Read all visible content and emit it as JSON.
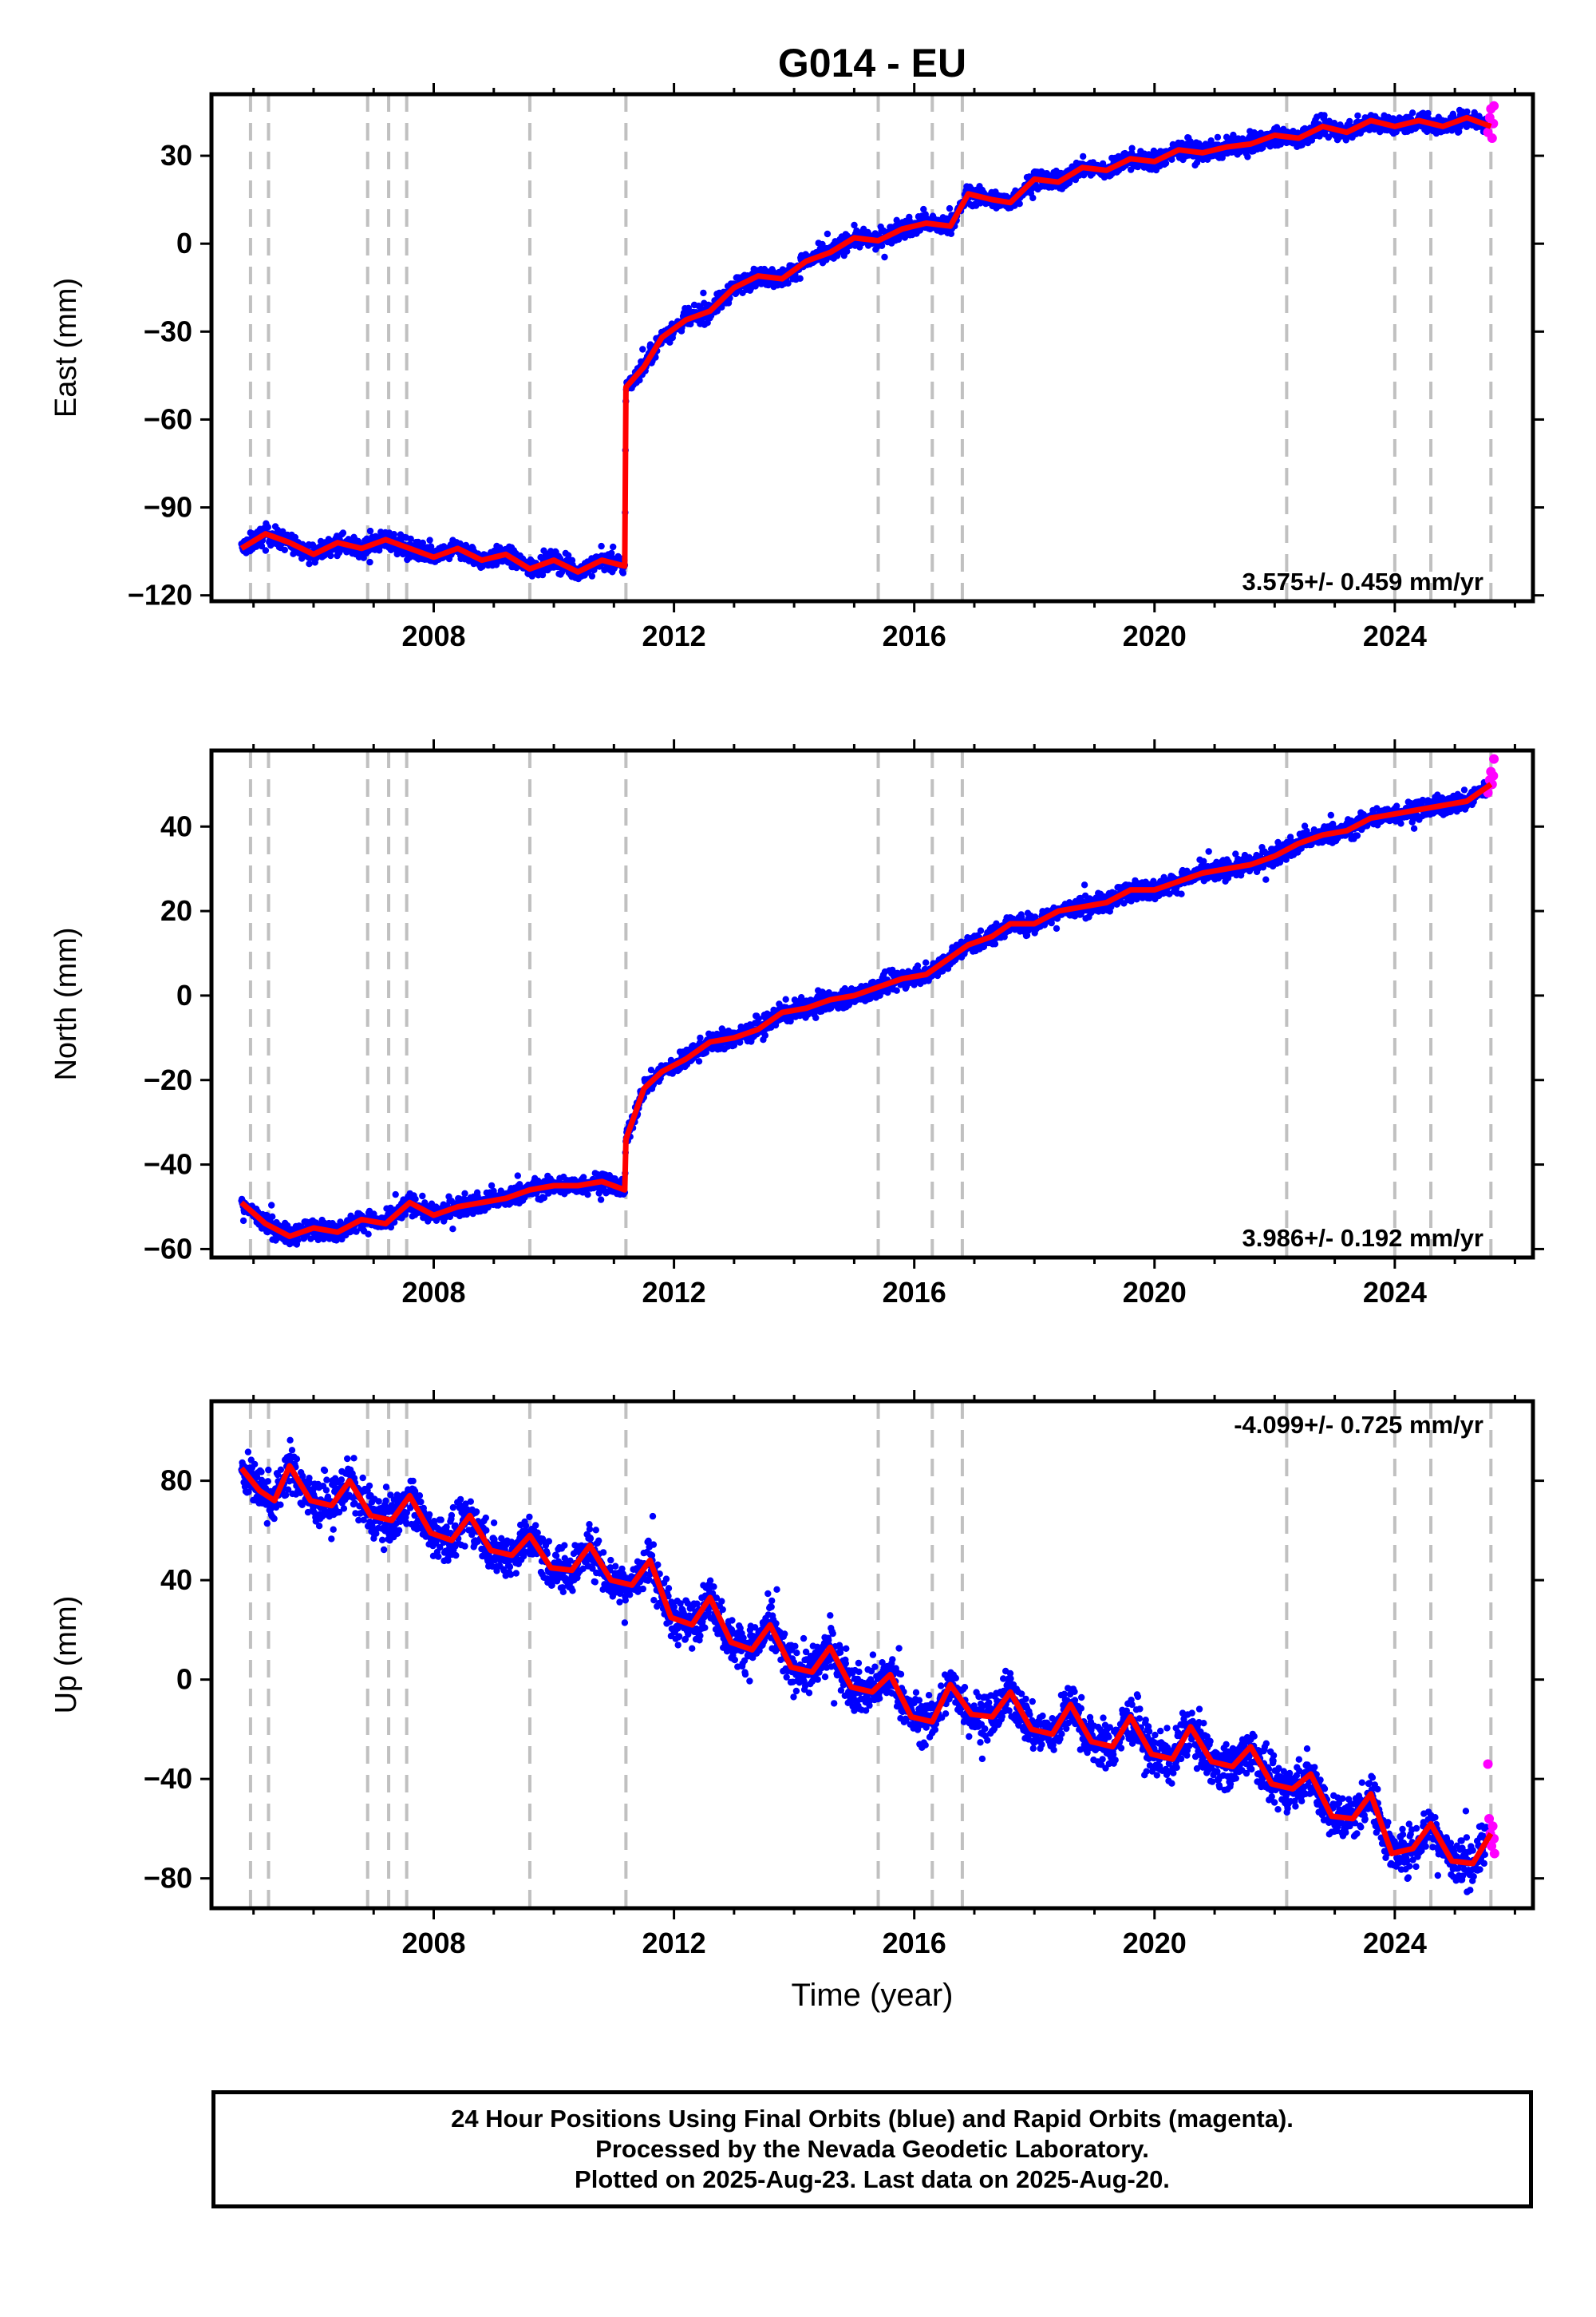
{
  "title": "G014 - EU",
  "xlabel": "Time (year)",
  "colors": {
    "final": "#0000ff",
    "rapid": "#ff00ff",
    "model": "#ff0000",
    "steps": "#c0c0c0"
  },
  "footer": {
    "line1": "24 Hour Positions Using Final Orbits (blue) and Rapid Orbits (magenta).",
    "line2": "Processed by the Nevada Geodetic Laboratory.",
    "line3": "Plotted on 2025-Aug-23. Last data on 2025-Aug-20."
  },
  "chart_data": [
    {
      "type": "scatter",
      "name": "east",
      "title": "G014 - EU",
      "ylabel": "East (mm)",
      "xlim": [
        2004.3,
        2026.3
      ],
      "ylim": [
        -122,
        51
      ],
      "xticks": [
        2008,
        2012,
        2016,
        2020,
        2024
      ],
      "yticks": [
        -120,
        -90,
        -60,
        -30,
        0,
        30
      ],
      "rate_label": "3.575+/- 0.459 mm/yr",
      "rate_position": "bottom-right",
      "step_lines": [
        2004.95,
        2005.25,
        2006.9,
        2007.25,
        2007.55,
        2009.6,
        2011.2,
        2015.4,
        2016.3,
        2016.8,
        2022.2,
        2024.0,
        2024.6,
        2025.6
      ],
      "model_curve": [
        [
          2004.8,
          -104
        ],
        [
          2005.2,
          -99
        ],
        [
          2005.6,
          -102
        ],
        [
          2006.0,
          -106
        ],
        [
          2006.4,
          -102
        ],
        [
          2006.8,
          -104
        ],
        [
          2007.2,
          -101
        ],
        [
          2007.6,
          -104
        ],
        [
          2008.0,
          -107
        ],
        [
          2008.4,
          -104
        ],
        [
          2008.8,
          -108
        ],
        [
          2009.2,
          -106
        ],
        [
          2009.6,
          -111
        ],
        [
          2010.0,
          -108
        ],
        [
          2010.4,
          -112
        ],
        [
          2010.8,
          -108
        ],
        [
          2011.18,
          -110
        ],
        [
          2011.2,
          -49
        ],
        [
          2011.5,
          -42
        ],
        [
          2011.8,
          -32
        ],
        [
          2012.2,
          -26
        ],
        [
          2012.6,
          -23
        ],
        [
          2013.0,
          -15
        ],
        [
          2013.4,
          -11
        ],
        [
          2013.8,
          -12
        ],
        [
          2014.2,
          -6
        ],
        [
          2014.6,
          -3
        ],
        [
          2015.0,
          2
        ],
        [
          2015.4,
          1
        ],
        [
          2015.8,
          5
        ],
        [
          2016.2,
          7
        ],
        [
          2016.6,
          6
        ],
        [
          2016.9,
          17
        ],
        [
          2017.3,
          15
        ],
        [
          2017.6,
          14
        ],
        [
          2018.0,
          22
        ],
        [
          2018.4,
          21
        ],
        [
          2018.8,
          26
        ],
        [
          2019.2,
          25
        ],
        [
          2019.6,
          29
        ],
        [
          2020.0,
          28
        ],
        [
          2020.4,
          32
        ],
        [
          2020.8,
          31
        ],
        [
          2021.2,
          33
        ],
        [
          2021.6,
          34
        ],
        [
          2022.0,
          37
        ],
        [
          2022.4,
          36
        ],
        [
          2022.8,
          40
        ],
        [
          2023.2,
          38
        ],
        [
          2023.6,
          42
        ],
        [
          2024.0,
          40
        ],
        [
          2024.4,
          42
        ],
        [
          2024.8,
          40
        ],
        [
          2025.2,
          43
        ],
        [
          2025.6,
          40
        ]
      ],
      "rapid_points": [
        [
          2025.55,
          38
        ],
        [
          2025.58,
          43
        ],
        [
          2025.6,
          46
        ],
        [
          2025.62,
          36
        ],
        [
          2025.64,
          41
        ],
        [
          2025.65,
          47
        ]
      ]
    },
    {
      "type": "scatter",
      "name": "north",
      "title": "",
      "ylabel": "North (mm)",
      "xlim": [
        2004.3,
        2026.3
      ],
      "ylim": [
        -62,
        58
      ],
      "xticks": [
        2008,
        2012,
        2016,
        2020,
        2024
      ],
      "yticks": [
        -60,
        -40,
        -20,
        0,
        20,
        40
      ],
      "rate_label": "3.986+/- 0.192 mm/yr",
      "rate_position": "bottom-right",
      "step_lines": [
        2004.95,
        2005.25,
        2006.9,
        2007.25,
        2007.55,
        2009.6,
        2011.2,
        2015.4,
        2016.3,
        2016.8,
        2022.2,
        2024.0,
        2024.6,
        2025.6
      ],
      "model_curve": [
        [
          2004.8,
          -49
        ],
        [
          2005.2,
          -54
        ],
        [
          2005.6,
          -57
        ],
        [
          2006.0,
          -55
        ],
        [
          2006.4,
          -56
        ],
        [
          2006.8,
          -53
        ],
        [
          2007.2,
          -54
        ],
        [
          2007.6,
          -49
        ],
        [
          2008.0,
          -52
        ],
        [
          2008.4,
          -50
        ],
        [
          2008.8,
          -49
        ],
        [
          2009.2,
          -48
        ],
        [
          2009.6,
          -46
        ],
        [
          2010.0,
          -45
        ],
        [
          2010.4,
          -45
        ],
        [
          2010.8,
          -44
        ],
        [
          2011.18,
          -46
        ],
        [
          2011.2,
          -34
        ],
        [
          2011.5,
          -22
        ],
        [
          2011.8,
          -18
        ],
        [
          2012.2,
          -15
        ],
        [
          2012.6,
          -11
        ],
        [
          2013.0,
          -10
        ],
        [
          2013.4,
          -8
        ],
        [
          2013.8,
          -4
        ],
        [
          2014.2,
          -3
        ],
        [
          2014.6,
          -1
        ],
        [
          2015.0,
          0
        ],
        [
          2015.4,
          2
        ],
        [
          2015.8,
          4
        ],
        [
          2016.2,
          5
        ],
        [
          2016.6,
          9
        ],
        [
          2016.9,
          12
        ],
        [
          2017.3,
          14
        ],
        [
          2017.6,
          17
        ],
        [
          2018.0,
          17
        ],
        [
          2018.4,
          20
        ],
        [
          2018.8,
          21
        ],
        [
          2019.2,
          22
        ],
        [
          2019.6,
          25
        ],
        [
          2020.0,
          25
        ],
        [
          2020.4,
          27
        ],
        [
          2020.8,
          29
        ],
        [
          2021.2,
          30
        ],
        [
          2021.6,
          31
        ],
        [
          2022.0,
          33
        ],
        [
          2022.4,
          36
        ],
        [
          2022.8,
          38
        ],
        [
          2023.2,
          39
        ],
        [
          2023.6,
          42
        ],
        [
          2024.0,
          43
        ],
        [
          2024.4,
          44
        ],
        [
          2024.8,
          45
        ],
        [
          2025.2,
          46
        ],
        [
          2025.6,
          50
        ]
      ],
      "rapid_points": [
        [
          2025.55,
          48
        ],
        [
          2025.58,
          51
        ],
        [
          2025.6,
          53
        ],
        [
          2025.62,
          50
        ],
        [
          2025.64,
          52
        ],
        [
          2025.65,
          56
        ]
      ]
    },
    {
      "type": "scatter",
      "name": "up",
      "title": "",
      "ylabel": "Up (mm)",
      "xlim": [
        2004.3,
        2026.3
      ],
      "ylim": [
        -92,
        112
      ],
      "xticks": [
        2008,
        2012,
        2016,
        2020,
        2024
      ],
      "yticks": [
        -80,
        -40,
        0,
        40,
        80
      ],
      "rate_label": "-4.099+/- 0.725 mm/yr",
      "rate_position": "top-right",
      "step_lines": [
        2004.95,
        2005.25,
        2006.9,
        2007.25,
        2007.55,
        2009.6,
        2011.2,
        2015.4,
        2016.3,
        2016.8,
        2022.2,
        2024.0,
        2024.6,
        2025.6
      ],
      "model_curve": [
        [
          2004.8,
          85
        ],
        [
          2005.1,
          76
        ],
        [
          2005.35,
          72
        ],
        [
          2005.6,
          86
        ],
        [
          2005.95,
          72
        ],
        [
          2006.3,
          70
        ],
        [
          2006.6,
          80
        ],
        [
          2006.95,
          66
        ],
        [
          2007.3,
          64
        ],
        [
          2007.6,
          74
        ],
        [
          2007.95,
          59
        ],
        [
          2008.3,
          56
        ],
        [
          2008.6,
          66
        ],
        [
          2008.95,
          52
        ],
        [
          2009.3,
          50
        ],
        [
          2009.6,
          58
        ],
        [
          2009.95,
          45
        ],
        [
          2010.3,
          44
        ],
        [
          2010.6,
          54
        ],
        [
          2010.95,
          40
        ],
        [
          2011.3,
          38
        ],
        [
          2011.6,
          48
        ],
        [
          2011.95,
          25
        ],
        [
          2012.3,
          22
        ],
        [
          2012.6,
          33
        ],
        [
          2012.95,
          15
        ],
        [
          2013.3,
          12
        ],
        [
          2013.6,
          22
        ],
        [
          2013.95,
          5
        ],
        [
          2014.3,
          3
        ],
        [
          2014.6,
          13
        ],
        [
          2014.95,
          -3
        ],
        [
          2015.3,
          -5
        ],
        [
          2015.6,
          2
        ],
        [
          2015.95,
          -15
        ],
        [
          2016.3,
          -17
        ],
        [
          2016.6,
          -2
        ],
        [
          2016.95,
          -14
        ],
        [
          2017.3,
          -15
        ],
        [
          2017.6,
          -5
        ],
        [
          2017.95,
          -20
        ],
        [
          2018.3,
          -22
        ],
        [
          2018.6,
          -10
        ],
        [
          2018.95,
          -25
        ],
        [
          2019.3,
          -27
        ],
        [
          2019.6,
          -15
        ],
        [
          2019.95,
          -30
        ],
        [
          2020.3,
          -32
        ],
        [
          2020.6,
          -19
        ],
        [
          2020.95,
          -33
        ],
        [
          2021.3,
          -35
        ],
        [
          2021.6,
          -27
        ],
        [
          2021.95,
          -42
        ],
        [
          2022.3,
          -44
        ],
        [
          2022.6,
          -38
        ],
        [
          2022.95,
          -55
        ],
        [
          2023.3,
          -56
        ],
        [
          2023.6,
          -46
        ],
        [
          2023.95,
          -70
        ],
        [
          2024.3,
          -68
        ],
        [
          2024.6,
          -58
        ],
        [
          2024.95,
          -73
        ],
        [
          2025.3,
          -74
        ],
        [
          2025.6,
          -62
        ]
      ],
      "rapid_points": [
        [
          2025.55,
          -34
        ],
        [
          2025.57,
          -56
        ],
        [
          2025.59,
          -62
        ],
        [
          2025.61,
          -67
        ],
        [
          2025.63,
          -59
        ],
        [
          2025.65,
          -64
        ],
        [
          2025.66,
          -70
        ]
      ]
    }
  ]
}
